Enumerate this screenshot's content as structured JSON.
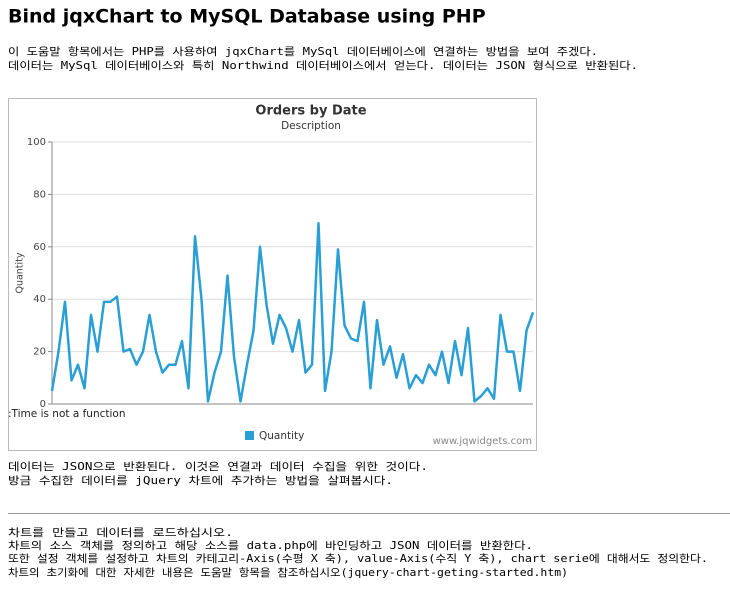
{
  "page": {
    "title": "Bind jqxChart to MySQL Database using PHP",
    "paragraphs": [
      "이 도움말 항목에서는 PHP를 사용하여 jqxChart를 MySql 데이터베이스에 연결하는 방법을 보여 주겠다.",
      "데이터는 MySql 데이터베이스와 특히 Northwind 데이터베이스에서 얻는다. 데이터는 JSON 형식으로 반환된다.",
      "데이터는 JSON으로 반환된다. 이것은 연결과 데이터 수집을 위한 것이다.",
      "방금 수집한 데이터를 jQuery 차트에 추가하는 방법을 살펴봅시다.",
      "차트를 만들고 데이터를 로드하십시오.",
      "차트의 소스 객체를 정의하고 해당 소스를 data.php에 바인딩하고 JSON 데이터를 반환한다.",
      "또한 설정 객체를 설정하고 차트의 카테고리-Axis(수평 X 축), value-Axis(수직 Y 축), chart serie에 대해서도 정의한다.",
      "차트의 초기화에 대한 자세한 내용은 도움말 항목을 참조하십시오(jquery-chart-geting-started.htm)"
    ]
  },
  "chart_data": {
    "type": "line",
    "title": "Orders by Date",
    "subtitle": "Description",
    "y_label": "Quantity",
    "error_text": ":Time is not a function",
    "watermark": "www.jqwidgets.com",
    "ylim": [
      0,
      100
    ],
    "yticks": [
      0,
      20,
      40,
      60,
      80,
      100
    ],
    "grid": true,
    "legend": "bottom",
    "series": [
      {
        "name": "Quantity",
        "color": "#2a9fd6",
        "values": [
          5,
          20,
          39,
          9,
          15,
          6,
          34,
          20,
          39,
          39,
          41,
          20,
          21,
          15,
          20,
          34,
          20,
          12,
          15,
          15,
          24,
          6,
          64,
          40,
          1,
          12,
          20,
          49,
          18,
          1,
          15,
          28,
          60,
          38,
          23,
          34,
          29,
          20,
          32,
          12,
          15,
          69,
          5,
          20,
          59,
          30,
          25,
          24,
          39,
          6,
          32,
          15,
          22,
          10,
          19,
          6,
          11,
          8,
          15,
          11,
          20,
          8,
          24,
          11,
          29,
          1,
          3,
          6,
          2,
          34,
          20,
          20,
          5,
          28,
          35
        ]
      }
    ]
  }
}
